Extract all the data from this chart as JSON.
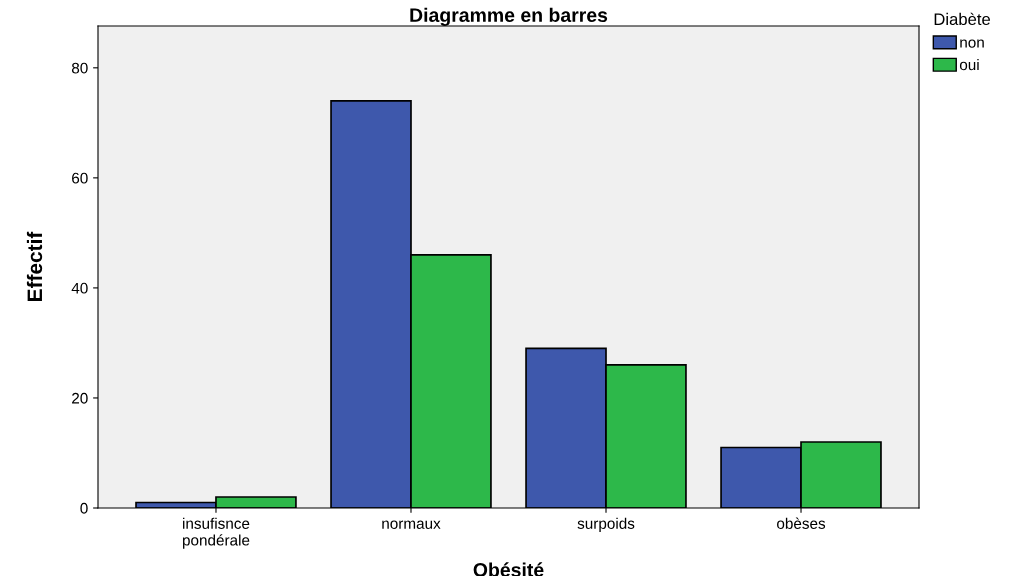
{
  "chart_data": {
    "type": "bar",
    "title": "Diagramme en barres",
    "xlabel": "Obésité",
    "ylabel": "Effectif",
    "legend_title": "Diabète",
    "categories": [
      "insufisnce\npondérale",
      "normaux",
      "surpoids",
      "obèses"
    ],
    "series": [
      {
        "name": "non",
        "color": "#3e58ac",
        "values": [
          1,
          74,
          29,
          11
        ]
      },
      {
        "name": "oui",
        "color": "#2db84a",
        "values": [
          2,
          46,
          26,
          12
        ]
      }
    ],
    "ylim": [
      0,
      87.6
    ],
    "yticks": [
      0,
      20,
      40,
      60,
      80
    ],
    "grid": false,
    "legend": "top right"
  }
}
